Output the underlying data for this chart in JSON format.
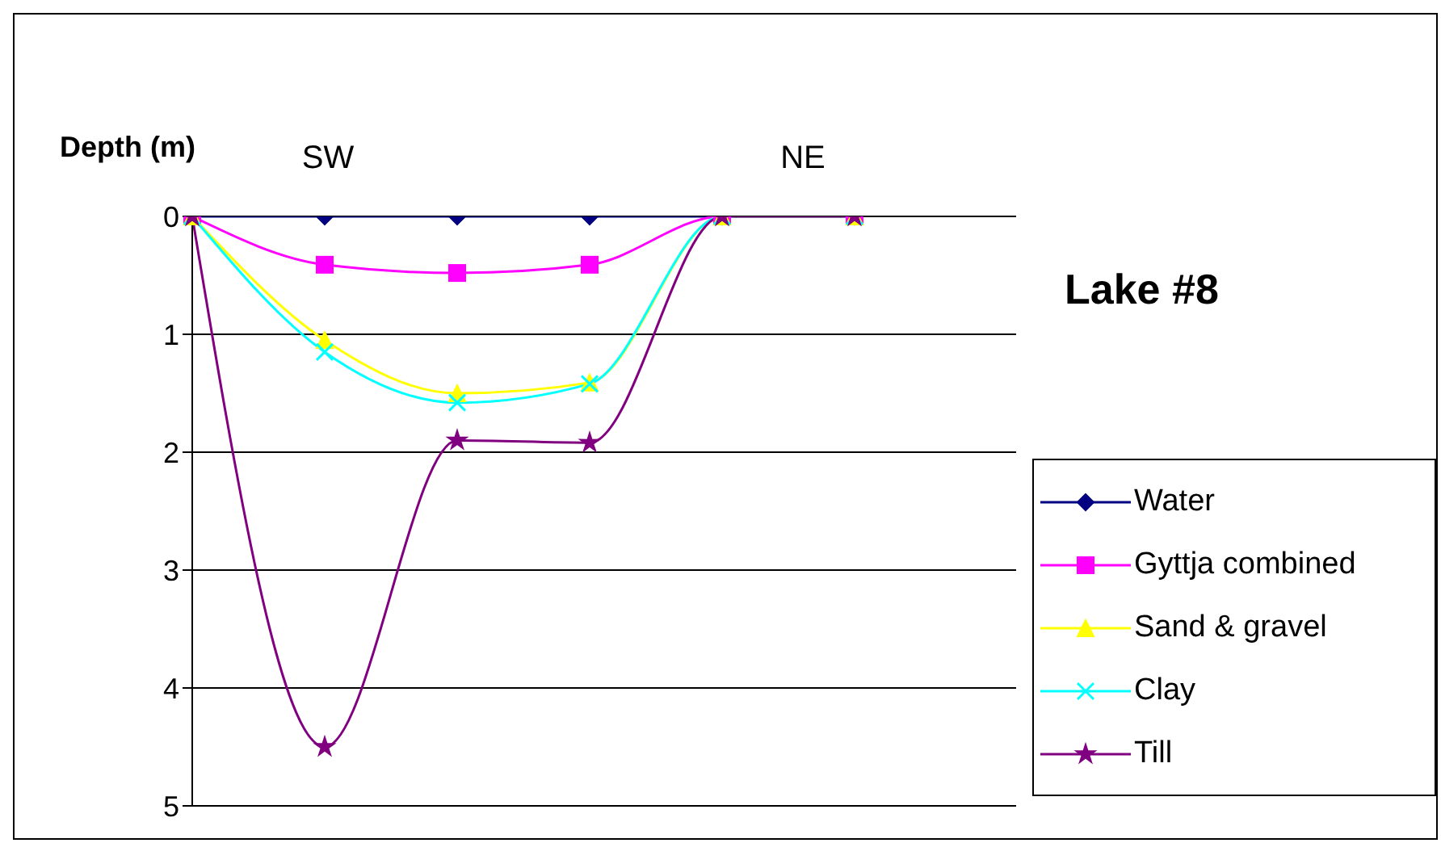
{
  "chart_data": {
    "type": "line",
    "title": "Lake #8",
    "ylabel": "Depth (m)",
    "annotations": [
      "SW",
      "NE"
    ],
    "categories": [
      null,
      null,
      null,
      null,
      null,
      null
    ],
    "series": [
      {
        "name": "Water",
        "color": "#000080",
        "marker": "diamond",
        "values": [
          0,
          0,
          0,
          0,
          0,
          0
        ]
      },
      {
        "name": "Gyttja combined",
        "color": "#ff00ff",
        "marker": "square",
        "values": [
          0,
          0.41,
          0.48,
          0.41,
          0,
          0
        ]
      },
      {
        "name": "Sand & gravel",
        "color": "#ffff00",
        "marker": "triangle",
        "values": [
          0,
          1.05,
          1.5,
          1.41,
          0,
          0
        ]
      },
      {
        "name": "Clay",
        "color": "#00ffff",
        "marker": "cross",
        "values": [
          0,
          1.15,
          1.58,
          1.42,
          0,
          0
        ]
      },
      {
        "name": "Till",
        "color": "#800080",
        "marker": "star",
        "values": [
          0,
          4.5,
          1.9,
          1.92,
          0,
          0
        ]
      }
    ],
    "ylim": [
      5,
      0
    ],
    "yticks": [
      0,
      1,
      2,
      3,
      4,
      5
    ],
    "grid": "y",
    "legend": "right",
    "tick_labels": "y"
  }
}
